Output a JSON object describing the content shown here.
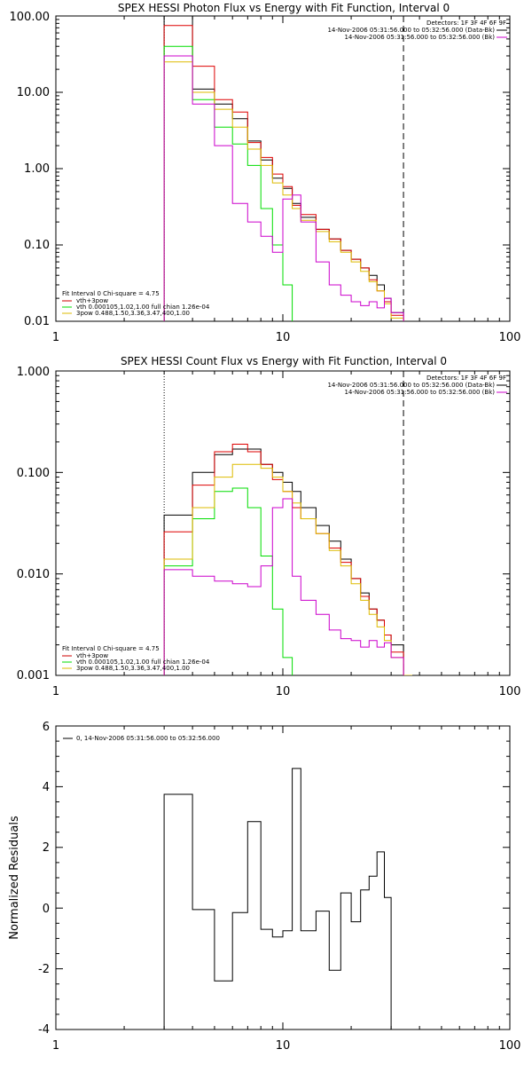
{
  "chart_data": [
    {
      "type": "line",
      "title": "SPEX HESSI Photon Flux vs Energy with Fit Function, Interval 0",
      "xlabel": "",
      "ylabel": "",
      "xscale": "log",
      "yscale": "log",
      "xlim": [
        1,
        100
      ],
      "ylim": [
        0.01,
        100
      ],
      "x_tick_labels": [
        "1",
        "10",
        "100"
      ],
      "y_tick_labels": [
        "0.01",
        "0.10",
        "1.00",
        "10.00",
        "100.00"
      ],
      "dotted_line_x": 3,
      "dashed_line_x": 34,
      "info_lines": [
        "Detectors: 1F 3F 4F 6F 9F",
        "14-Nov-2006 05:31:56.000 to 05:32:56.000 (Data-Bk)",
        "14-Nov-2006 05:31:56.000 to 05:32:56.000 (Bk)"
      ],
      "info_colors": [
        "#000000",
        "#cc00cc"
      ],
      "fit_text": [
        "Fit Interval 0   Chi-square = 4.75",
        "vth+3pow",
        "vth 0.000105,1.02,1.00  full chian 1.26e-04",
        "3pow 0.488,1.50,3.36,3.47,400,1.00"
      ],
      "fit_colors": [
        "#000000",
        "#cc0000",
        "#00dd00",
        "#ddbb00"
      ],
      "edges": [
        3,
        4,
        5,
        6,
        7,
        8,
        9,
        10,
        11,
        12,
        14,
        16,
        18,
        20,
        22,
        24,
        26,
        28,
        30,
        34
      ],
      "series": [
        {
          "color": "#000000",
          "values": [
            100,
            11,
            7,
            4.5,
            2.3,
            1.3,
            0.75,
            0.55,
            0.35,
            0.23,
            0.16,
            0.12,
            0.085,
            0.065,
            0.05,
            0.04,
            0.03,
            0.02,
            0.013
          ]
        },
        {
          "color": "#dd0000",
          "values": [
            75,
            22,
            8,
            5.5,
            2.2,
            1.4,
            0.85,
            0.58,
            0.33,
            0.25,
            0.16,
            0.12,
            0.085,
            0.065,
            0.05,
            0.035,
            0.025,
            0.018,
            0.012
          ]
        },
        {
          "color": "#00dd00",
          "values": [
            40,
            8,
            3.5,
            2.1,
            1.1,
            0.3,
            0.1,
            0.03,
            0.009
          ]
        },
        {
          "color": "#ddbb00",
          "values": [
            25,
            10,
            6,
            3.5,
            1.8,
            1.1,
            0.65,
            0.45,
            0.3,
            0.21,
            0.15,
            0.11,
            0.08,
            0.06,
            0.045,
            0.033,
            0.025,
            0.017,
            0.011
          ]
        },
        {
          "color": "#cc00cc",
          "values": [
            30,
            7,
            2,
            0.35,
            0.2,
            0.13,
            0.08,
            0.4,
            0.45,
            0.2,
            0.06,
            0.03,
            0.022,
            0.018,
            0.016,
            0.018,
            0.015,
            0.02,
            0.013
          ]
        }
      ]
    },
    {
      "type": "line",
      "title": "SPEX HESSI Count Flux vs Energy with Fit Function, Interval 0",
      "xlabel": "",
      "ylabel": "",
      "xscale": "log",
      "yscale": "log",
      "xlim": [
        1,
        100
      ],
      "ylim": [
        0.001,
        1
      ],
      "x_tick_labels": [
        "1",
        "10",
        "100"
      ],
      "y_tick_labels": [
        "0.001",
        "0.010",
        "0.100",
        "1.000"
      ],
      "dotted_line_x": 3,
      "dashed_line_x": 34,
      "info_lines": [
        "Detectors: 1F 3F 4F 6F 9F",
        "14-Nov-2006 05:31:56.000 to 05:32:56.000 (Data-Bk)",
        "14-Nov-2006 05:31:56.000 to 05:32:56.000 (Bk)"
      ],
      "info_colors": [
        "#000000",
        "#cc00cc"
      ],
      "fit_text": [
        "Fit Interval 0   Chi-square = 4.75",
        "vth+3pow",
        "vth 0.000105,1.02,1.00  full chian 1.26e-04",
        "3pow 0.488,1.50,3.36,3.47,400,1.00"
      ],
      "fit_colors": [
        "#000000",
        "#cc0000",
        "#00dd00",
        "#ddbb00"
      ],
      "edges": [
        3,
        4,
        5,
        6,
        7,
        8,
        9,
        10,
        11,
        12,
        14,
        16,
        18,
        20,
        22,
        24,
        26,
        28,
        30,
        34,
        37
      ],
      "series": [
        {
          "color": "#000000",
          "values": [
            0.038,
            0.1,
            0.15,
            0.17,
            0.17,
            0.12,
            0.1,
            0.08,
            0.065,
            0.045,
            0.03,
            0.021,
            0.014,
            0.009,
            0.0065,
            0.0045,
            0.0035,
            0.0025,
            0.002
          ]
        },
        {
          "color": "#dd0000",
          "values": [
            0.026,
            0.075,
            0.16,
            0.19,
            0.16,
            0.12,
            0.085,
            0.065,
            0.045,
            0.035,
            0.025,
            0.018,
            0.013,
            0.009,
            0.006,
            0.0045,
            0.0035,
            0.0025,
            0.0017
          ]
        },
        {
          "color": "#00dd00",
          "values": [
            0.012,
            0.035,
            0.065,
            0.07,
            0.045,
            0.015,
            0.0045,
            0.0015,
            0.0005
          ]
        },
        {
          "color": "#ddbb00",
          "values": [
            0.014,
            0.045,
            0.09,
            0.12,
            0.12,
            0.11,
            0.09,
            0.065,
            0.05,
            0.035,
            0.025,
            0.017,
            0.012,
            0.008,
            0.0055,
            0.004,
            0.003,
            0.0022,
            0.0015,
            0.001
          ]
        },
        {
          "color": "#cc00cc",
          "values": [
            0.011,
            0.0095,
            0.0085,
            0.008,
            0.0075,
            0.012,
            0.045,
            0.055,
            0.0095,
            0.0055,
            0.004,
            0.0028,
            0.0023,
            0.0022,
            0.0019,
            0.0022,
            0.0019,
            0.0021,
            0.0015
          ]
        }
      ]
    },
    {
      "type": "line",
      "title": "",
      "xlabel": "",
      "ylabel": "Normalized Residuals",
      "xscale": "log",
      "yscale": "linear",
      "xlim": [
        1,
        100
      ],
      "ylim": [
        -4,
        6
      ],
      "x_tick_labels": [
        "1",
        "10",
        "100"
      ],
      "y_tick_labels": [
        "-4",
        "-2",
        "0",
        "2",
        "4",
        "6"
      ],
      "legend": "0, 14-Nov-2006 05:31:56.000 to 05:32:56.000",
      "edges": [
        3,
        4,
        5,
        6,
        7,
        8,
        9,
        10,
        11,
        12,
        14,
        16,
        18,
        20,
        22,
        24,
        26,
        28,
        30,
        34
      ],
      "series": [
        {
          "color": "#000000",
          "values": [
            3.75,
            -0.05,
            -2.4,
            -0.15,
            2.85,
            -0.7,
            -0.95,
            -0.75,
            4.6,
            -0.75,
            -0.1,
            -2.05,
            0.5,
            -0.45,
            0.6,
            1.05,
            1.85,
            0.35
          ]
        }
      ]
    }
  ]
}
